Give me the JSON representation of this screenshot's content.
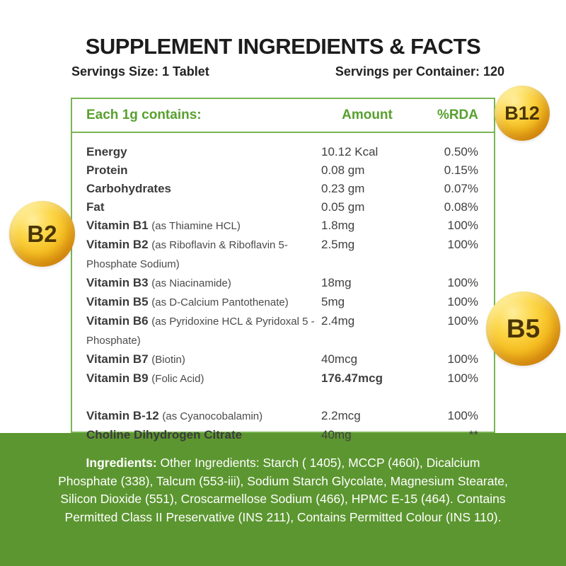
{
  "header": {
    "title": "SUPPLEMENT INGREDIENTS & FACTS",
    "serving_size": "Servings Size: 1 Tablet",
    "servings_per_container": "Servings per Container: 120"
  },
  "table": {
    "columns": {
      "name": "Each 1g contains:",
      "amount": "Amount",
      "rda": "%RDA"
    },
    "rows": [
      {
        "name": "Energy",
        "amount": "10.12 Kcal",
        "rda": "0.50%"
      },
      {
        "name": "Protein",
        "amount": "0.08 gm",
        "rda": "0.15%"
      },
      {
        "name": "Carbohydrates",
        "amount": "0.23 gm",
        "rda": "0.07%"
      },
      {
        "name": "Fat",
        "amount": "0.05 gm",
        "rda": "0.08%"
      },
      {
        "name": "Vitamin B1",
        "detail": "(as Thiamine HCL)",
        "amount": "1.8mg",
        "rda": "100%"
      },
      {
        "name": "Vitamin B2",
        "detail": "(as Riboflavin & Riboflavin 5-Phosphate Sodium)",
        "amount": "2.5mg",
        "rda": "100%"
      },
      {
        "name": "Vitamin B3",
        "detail": "(as Niacinamide)",
        "amount": "18mg",
        "rda": "100%"
      },
      {
        "name": "Vitamin B5",
        "detail": "(as D-Calcium Pantothenate)",
        "amount": "5mg",
        "rda": "100%"
      },
      {
        "name": "Vitamin B6",
        "detail": "(as Pyridoxine HCL & Pyridoxal 5 - Phosphate)",
        "amount": "2.4mg",
        "rda": "100%"
      },
      {
        "name": "Vitamin B7",
        "detail": "(Biotin)",
        "amount": "40mcg",
        "rda": "100%"
      },
      {
        "name": "Vitamin B9",
        "detail": "(Folic Acid)",
        "amount": "176.47mcg",
        "rda": "100%"
      },
      {
        "name": "Vitamin B-12",
        "detail": "(as Cyanocobalamin)",
        "amount": "2.2mcg",
        "rda": "100%"
      },
      {
        "name": "Choline Dihydrogen Citrate",
        "amount": "40mg",
        "rda": "**"
      }
    ]
  },
  "badges": [
    {
      "label": "B12"
    },
    {
      "label": "B2"
    },
    {
      "label": "B5"
    }
  ],
  "footer": {
    "ingredients_label": "Ingredients:",
    "ingredients_text": " Other Ingredients: Starch ( 1405), MCCP (460i), Dicalcium Phosphate (338), Talcum (553-iii), Sodium Starch Glycolate, Magnesium Stearate, Silicon Dioxide (551), Croscarmellose Sodium (466), HPMC E-15 (464). Contains Permitted Class II Preservative (INS 211), Contains Permitted Colour (INS 110)."
  },
  "colors": {
    "green_text": "#58a02f",
    "green_border": "#79b553",
    "green_band": "#5c9630",
    "badge_gold": "#f6bf22",
    "badge_text": "#4a3505",
    "body_text": "#404040"
  }
}
